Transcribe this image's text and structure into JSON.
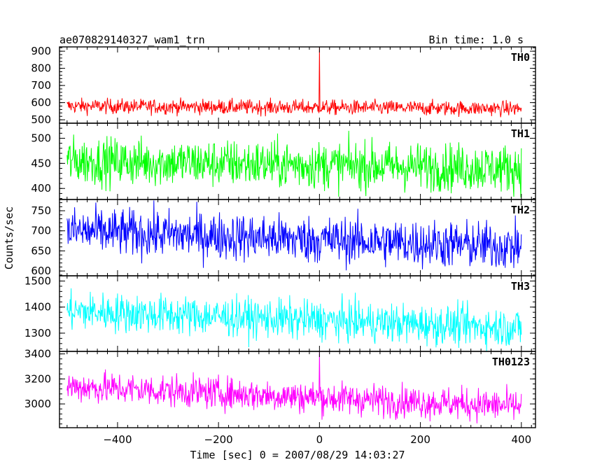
{
  "header": {
    "title": "ae070829140327_wam1_trn",
    "bin_time": "Bin time: 1.0 s"
  },
  "chart_data": {
    "type": "line",
    "xlabel": "Time [sec] 0 = 2007/08/29 14:03:27",
    "ylabel": "Counts/sec",
    "xlim": [
      -515,
      428
    ],
    "xticks": [
      -400,
      -200,
      0,
      200,
      400
    ],
    "bin_time_s": 1.0,
    "panels": [
      {
        "name": "TH0",
        "color": "#ff0000",
        "ylim": [
          480,
          925
        ],
        "yticks": [
          500,
          600,
          700,
          800,
          900
        ],
        "mean_start": 580,
        "mean_end": 565,
        "noise": 22,
        "spike_x": 0,
        "spike_value": 930
      },
      {
        "name": "TH1",
        "color": "#00ff00",
        "ylim": [
          378,
          530
        ],
        "yticks": [
          400,
          450,
          500
        ],
        "mean_start": 455,
        "mean_end": 440,
        "noise": 24
      },
      {
        "name": "TH2",
        "color": "#0000ff",
        "ylim": [
          588,
          778
        ],
        "yticks": [
          600,
          650,
          700,
          750
        ],
        "mean_start": 700,
        "mean_end": 660,
        "noise": 30
      },
      {
        "name": "TH3",
        "color": "#00ffff",
        "ylim": [
          1230,
          1520
        ],
        "yticks": [
          1300,
          1400,
          1500
        ],
        "mean_start": 1385,
        "mean_end": 1320,
        "noise": 38
      },
      {
        "name": "TH0123",
        "color": "#ff00ff",
        "ylim": [
          2810,
          3420
        ],
        "yticks": [
          3000,
          3200,
          3400
        ],
        "mean_start": 3140,
        "mean_end": 2980,
        "noise": 65,
        "spike_x": 0,
        "spike_value": 3420
      }
    ]
  }
}
